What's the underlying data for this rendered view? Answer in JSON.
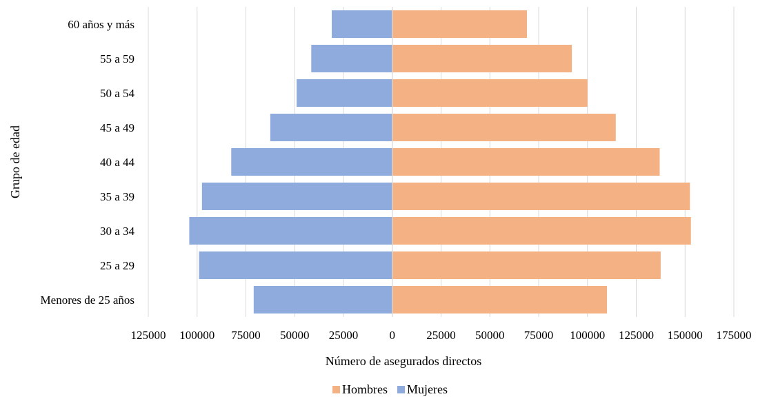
{
  "chart_data": {
    "type": "bar",
    "orientation": "horizontal",
    "layout": "population-pyramid",
    "categories": [
      "Menores de 25 años",
      "25 a 29",
      "30 a 34",
      "35 a 39",
      "40 a 44",
      "45 a 49",
      "50 a 54",
      "55 a 59",
      "60 años y más"
    ],
    "series": [
      {
        "name": "Hombres",
        "color": "#f4b183",
        "side": "right",
        "values": [
          110000,
          137500,
          153000,
          152500,
          137000,
          114500,
          100000,
          92000,
          69000
        ]
      },
      {
        "name": "Mujeres",
        "color": "#8faadc",
        "side": "left",
        "values": [
          71000,
          99000,
          104000,
          97500,
          82500,
          62500,
          49000,
          41500,
          31000
        ]
      }
    ],
    "xlabel": "Número de asegurados directos",
    "ylabel": "Grupo de edad",
    "xlim": [
      -125000,
      175000
    ],
    "xticks": [
      -125000,
      -100000,
      -75000,
      -50000,
      -25000,
      0,
      25000,
      50000,
      75000,
      100000,
      125000,
      150000,
      175000
    ],
    "xtick_labels": [
      "125000",
      "100000",
      "75000",
      "50000",
      "25000",
      "0",
      "25000",
      "50000",
      "75000",
      "100000",
      "125000",
      "150000",
      "175000"
    ],
    "grid": "vertical",
    "legend_position": "bottom"
  }
}
